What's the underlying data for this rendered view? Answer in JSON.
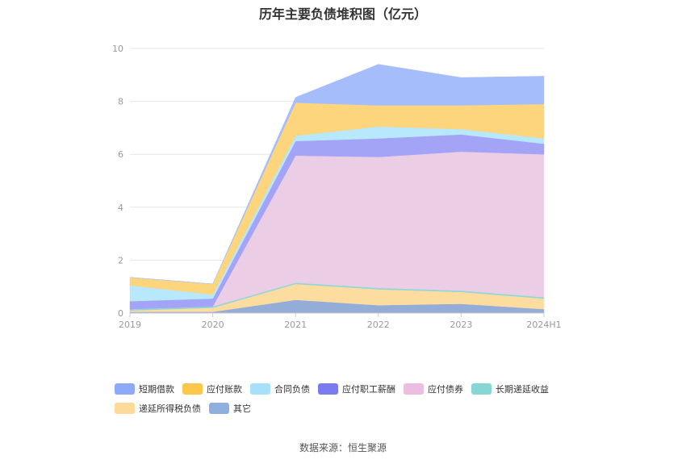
{
  "title": "历年主要负债堆积图（亿元）",
  "source": "数据来源：恒生聚源",
  "chart_data": {
    "type": "area",
    "stacked": true,
    "categories": [
      "2019",
      "2020",
      "2021",
      "2022",
      "2023",
      "2024H1"
    ],
    "ylim": [
      0,
      10
    ],
    "yticks": [
      "0",
      "2",
      "4",
      "6",
      "8",
      "10"
    ],
    "grid": true,
    "legend_position": "bottom",
    "series": [
      {
        "name": "其它",
        "color": "#93acd8",
        "values": [
          0.05,
          0.05,
          0.5,
          0.3,
          0.35,
          0.15
        ]
      },
      {
        "name": "递延所得税负债",
        "color": "#fddca0",
        "values": [
          0.05,
          0.15,
          0.6,
          0.6,
          0.45,
          0.4
        ]
      },
      {
        "name": "长期递延收益",
        "color": "#8dd8d8",
        "values": [
          0.05,
          0.05,
          0.05,
          0.05,
          0.05,
          0.05
        ]
      },
      {
        "name": "应付债券",
        "color": "#eccde6",
        "values": [
          0.0,
          0.0,
          4.8,
          4.95,
          5.25,
          5.4
        ]
      },
      {
        "name": "应付职工薪酬",
        "color": "#a4a4f6",
        "values": [
          0.3,
          0.3,
          0.55,
          0.7,
          0.65,
          0.4
        ]
      },
      {
        "name": "合同负债",
        "color": "#b8e8fb",
        "values": [
          0.6,
          0.15,
          0.2,
          0.45,
          0.2,
          0.2
        ]
      },
      {
        "name": "应付账款",
        "color": "#fdd57c",
        "values": [
          0.3,
          0.4,
          1.25,
          0.8,
          0.9,
          1.3
        ]
      },
      {
        "name": "短期借款",
        "color": "#a6bdfb",
        "values": [
          0.0,
          0.0,
          0.2,
          1.55,
          1.05,
          1.05
        ]
      }
    ],
    "legend": [
      {
        "name": "短期借款",
        "color": "#8ea9f7"
      },
      {
        "name": "应付账款",
        "color": "#fec64b"
      },
      {
        "name": "合同负债",
        "color": "#a7e0f8"
      },
      {
        "name": "应付职工薪酬",
        "color": "#7b7bf0"
      },
      {
        "name": "应付债券",
        "color": "#ebbde0"
      },
      {
        "name": "长期递延收益",
        "color": "#86d6d6"
      },
      {
        "name": "递延所得税负债",
        "color": "#fdd99a"
      },
      {
        "name": "其它",
        "color": "#8fb0de"
      }
    ]
  }
}
